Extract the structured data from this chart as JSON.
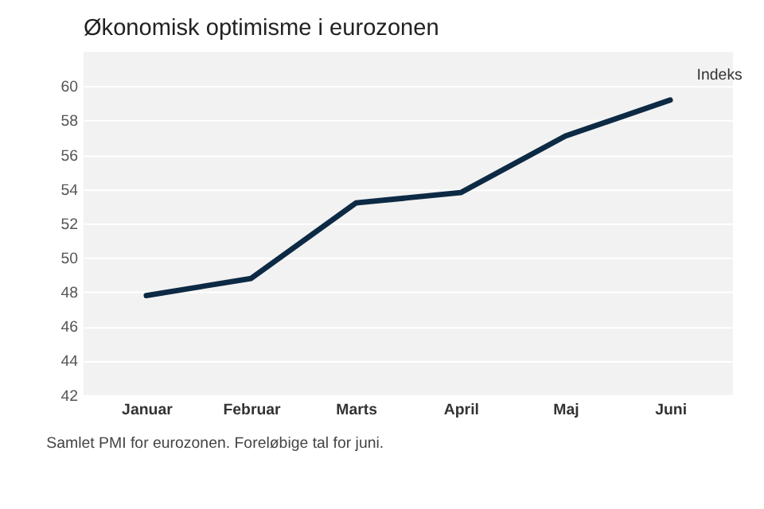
{
  "chart_data": {
    "type": "line",
    "title": "Økonomisk optimisme i eurozonen",
    "ylabel": "Indeks",
    "categories": [
      "Januar",
      "Februar",
      "Marts",
      "April",
      "Maj",
      "Juni"
    ],
    "series": [
      {
        "color": "#0d2a45",
        "values": [
          47.8,
          48.8,
          53.2,
          53.8,
          57.1,
          59.2
        ]
      }
    ],
    "ylim": [
      42,
      62
    ],
    "yticks": [
      42,
      44,
      46,
      48,
      50,
      52,
      54,
      56,
      58,
      60
    ],
    "grid": "y",
    "legend": false,
    "marker": "none",
    "line_style": "solid",
    "annotations": [
      "Samlet PMI for eurozonen. Foreløbige tal for juni."
    ]
  }
}
